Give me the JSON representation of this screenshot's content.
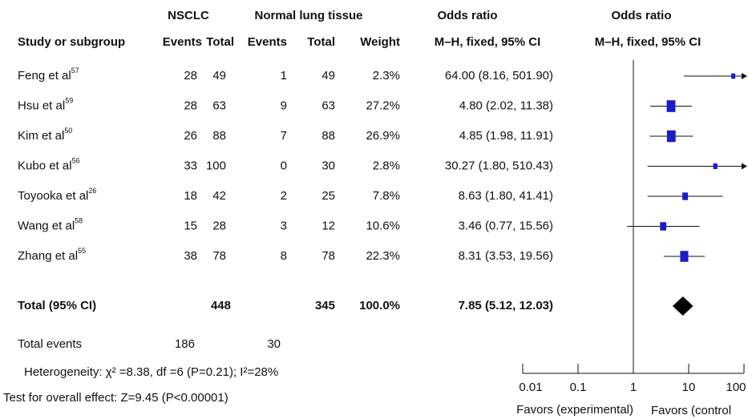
{
  "header": {
    "groups": [
      "NSCLC",
      "Normal lung tissue",
      "Odds ratio",
      "Odds ratio"
    ],
    "columns": [
      "Study or subgroup",
      "Events",
      "Total",
      "Events",
      "Total",
      "Weight",
      "M–H, fixed, 95% CI",
      "M–H, fixed, 95% CI"
    ]
  },
  "chart_data": {
    "type": "forest",
    "xlog": true,
    "xlim": [
      0.01,
      100
    ],
    "xticks": [
      0.01,
      0.1,
      1,
      10,
      100
    ],
    "reference_line": 1,
    "xlabels": [
      "Favors (experimental)",
      "Favors (control"
    ],
    "color": "#1b1bc8",
    "studies": [
      {
        "name": "Feng et al",
        "ref": "57",
        "events1": 28,
        "total1": 49,
        "events2": 1,
        "total2": 49,
        "weight": 2.3,
        "weight_label": "2.3%",
        "or": 64,
        "lower": 8.16,
        "upper": 501.9,
        "ci_label": "64.00 (8.16, 501.90)"
      },
      {
        "name": "Hsu et al",
        "ref": "59",
        "events1": 28,
        "total1": 63,
        "events2": 9,
        "total2": 63,
        "weight": 27.2,
        "weight_label": "27.2%",
        "or": 4.8,
        "lower": 2.02,
        "upper": 11.38,
        "ci_label": "4.80 (2.02, 11.38)"
      },
      {
        "name": "Kim et al",
        "ref": "50",
        "events1": 26,
        "total1": 88,
        "events2": 7,
        "total2": 88,
        "weight": 26.9,
        "weight_label": "26.9%",
        "or": 4.85,
        "lower": 1.98,
        "upper": 11.91,
        "ci_label": "4.85 (1.98, 11.91)"
      },
      {
        "name": "Kubo et al",
        "ref": "56",
        "events1": 33,
        "total1": 100,
        "events2": 0,
        "total2": 30,
        "weight": 2.8,
        "weight_label": "2.8%",
        "or": 30.27,
        "lower": 1.8,
        "upper": 510.43,
        "ci_label": "30.27 (1.80, 510.43)"
      },
      {
        "name": "Toyooka et al",
        "ref": "26",
        "events1": 18,
        "total1": 42,
        "events2": 2,
        "total2": 25,
        "weight": 7.8,
        "weight_label": "7.8%",
        "or": 8.63,
        "lower": 1.8,
        "upper": 41.41,
        "ci_label": "8.63 (1.80, 41.41)"
      },
      {
        "name": "Wang et al",
        "ref": "58",
        "events1": 15,
        "total1": 28,
        "events2": 3,
        "total2": 12,
        "weight": 10.6,
        "weight_label": "10.6%",
        "or": 3.46,
        "lower": 0.77,
        "upper": 15.56,
        "ci_label": "3.46 (0.77, 15.56)"
      },
      {
        "name": "Zhang et al",
        "ref": "55",
        "events1": 38,
        "total1": 78,
        "events2": 8,
        "total2": 78,
        "weight": 22.3,
        "weight_label": "22.3%",
        "or": 8.31,
        "lower": 3.53,
        "upper": 19.56,
        "ci_label": "8.31 (3.53, 19.56)"
      }
    ],
    "total": {
      "name": "Total (95% CI)",
      "total1": 448,
      "total2": 345,
      "weight": 100,
      "weight_label": "100.0%",
      "or": 7.85,
      "lower": 5.12,
      "upper": 12.03,
      "ci_label": "7.85 (5.12, 12.03)"
    },
    "total_events": {
      "name": "Total events",
      "events1": 186,
      "events2": 30
    },
    "heterogeneity": "Heterogeneity: χ² =8.38, df =6 (P=0.21); I²=28%",
    "overall_effect": "Test for overall effect: Z=9.45 (P<0.00001)"
  }
}
